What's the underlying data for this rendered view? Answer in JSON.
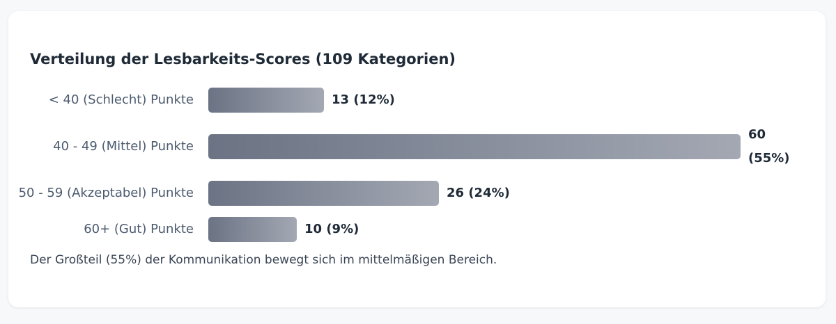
{
  "chart_data": {
    "type": "bar",
    "orientation": "horizontal",
    "title": "Verteilung der Lesbarkeits-Scores (109 Kategorien)",
    "categories": [
      "< 40 (Schlecht) Punkte",
      "40 - 49 (Mittel) Punkte",
      "50 - 59 (Akzeptabel) Punkte",
      "60+ (Gut) Punkte"
    ],
    "values": [
      13,
      60,
      26,
      10
    ],
    "value_labels": [
      "13 (12%)",
      "60 (55%)",
      "26 (24%)",
      "10 (9%)"
    ],
    "xlim": [
      0,
      60
    ],
    "grid": false,
    "bar_color_start": "#6b7384",
    "bar_color_end": "#a3a8b3"
  },
  "note": "Der Großteil (55%) der Kommunikation bewegt sich im mittelmäßigen Bereich."
}
